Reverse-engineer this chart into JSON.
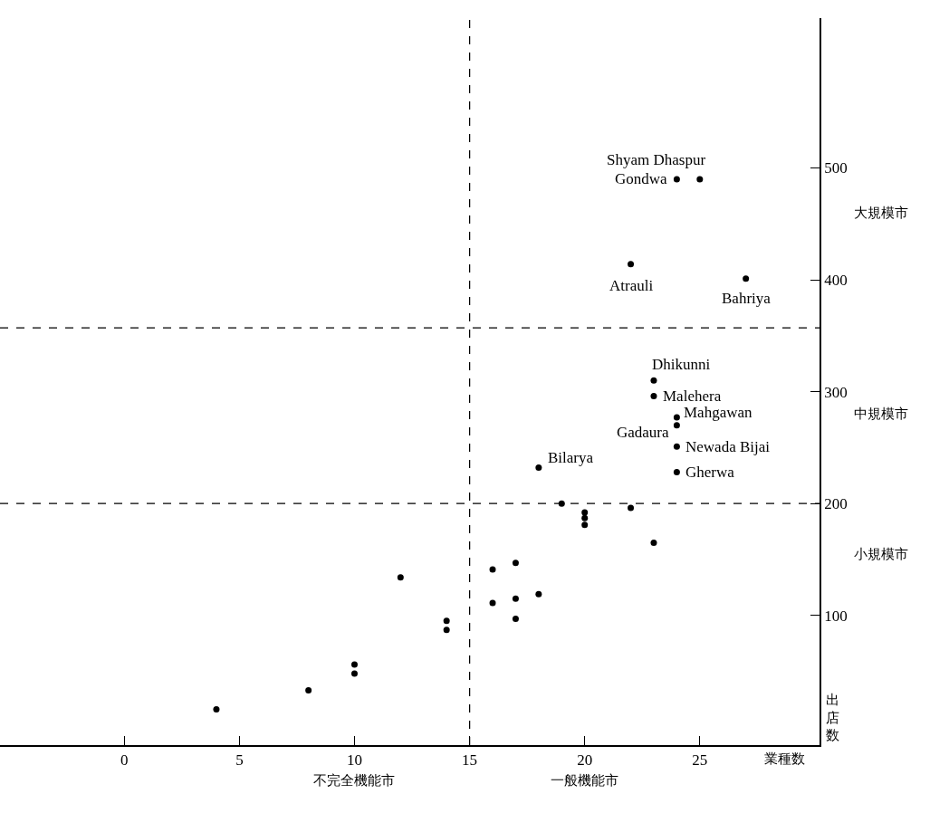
{
  "chart_data": {
    "type": "scatter",
    "xlabel": "業種数",
    "ylabel": "出店数",
    "x": [
      4,
      8,
      10,
      10,
      12,
      14,
      14,
      16,
      16,
      17,
      17,
      17,
      18,
      19,
      20,
      20,
      20,
      22,
      23,
      18,
      23,
      23,
      24,
      24,
      24,
      24,
      22,
      24,
      25,
      27
    ],
    "series": [
      {
        "color": "#000000",
        "values": [
          16,
          33,
          56,
          48,
          134,
          95,
          87,
          141,
          111,
          147,
          115,
          97,
          119,
          200,
          192,
          187,
          181,
          196,
          165,
          232,
          310,
          296,
          277,
          270,
          251,
          228,
          414,
          490,
          490,
          401
        ]
      }
    ],
    "xlim": [
      -5.4,
      30.2
    ],
    "ylim": [
      -16,
      634
    ],
    "xticks": [
      0,
      5,
      10,
      15,
      20,
      25
    ],
    "yticks": [
      100,
      200,
      300,
      400,
      500
    ],
    "ref_lines": [
      {
        "axis": "x",
        "value": 15,
        "line_style": "dashed",
        "color": "#000000"
      },
      {
        "axis": "y",
        "value": 357,
        "line_style": "dashed",
        "color": "#000000"
      },
      {
        "axis": "y",
        "value": 200,
        "line_style": "dashed",
        "color": "#000000"
      }
    ],
    "annotations": [
      {
        "text": "Shyam Dhaspur",
        "x": 25,
        "y": 490
      },
      {
        "text": "Gondwa",
        "x": 24,
        "y": 490
      },
      {
        "text": "Atrauli",
        "x": 22,
        "y": 414
      },
      {
        "text": "Bahriya",
        "x": 27,
        "y": 401
      },
      {
        "text": "Dhikunni",
        "x": 23,
        "y": 310
      },
      {
        "text": "Malehera",
        "x": 23,
        "y": 296
      },
      {
        "text": "Mahgawan",
        "x": 24,
        "y": 277
      },
      {
        "text": "Gadaura",
        "x": 24,
        "y": 270
      },
      {
        "text": "Newada Bijai",
        "x": 24,
        "y": 251
      },
      {
        "text": "Gherwa",
        "x": 24,
        "y": 228
      },
      {
        "text": "Bilarya",
        "x": 18,
        "y": 232
      },
      "大規模市",
      "中規模市",
      "小規模市",
      "不完全機能市",
      "一般機能市"
    ],
    "marker": "circle"
  }
}
